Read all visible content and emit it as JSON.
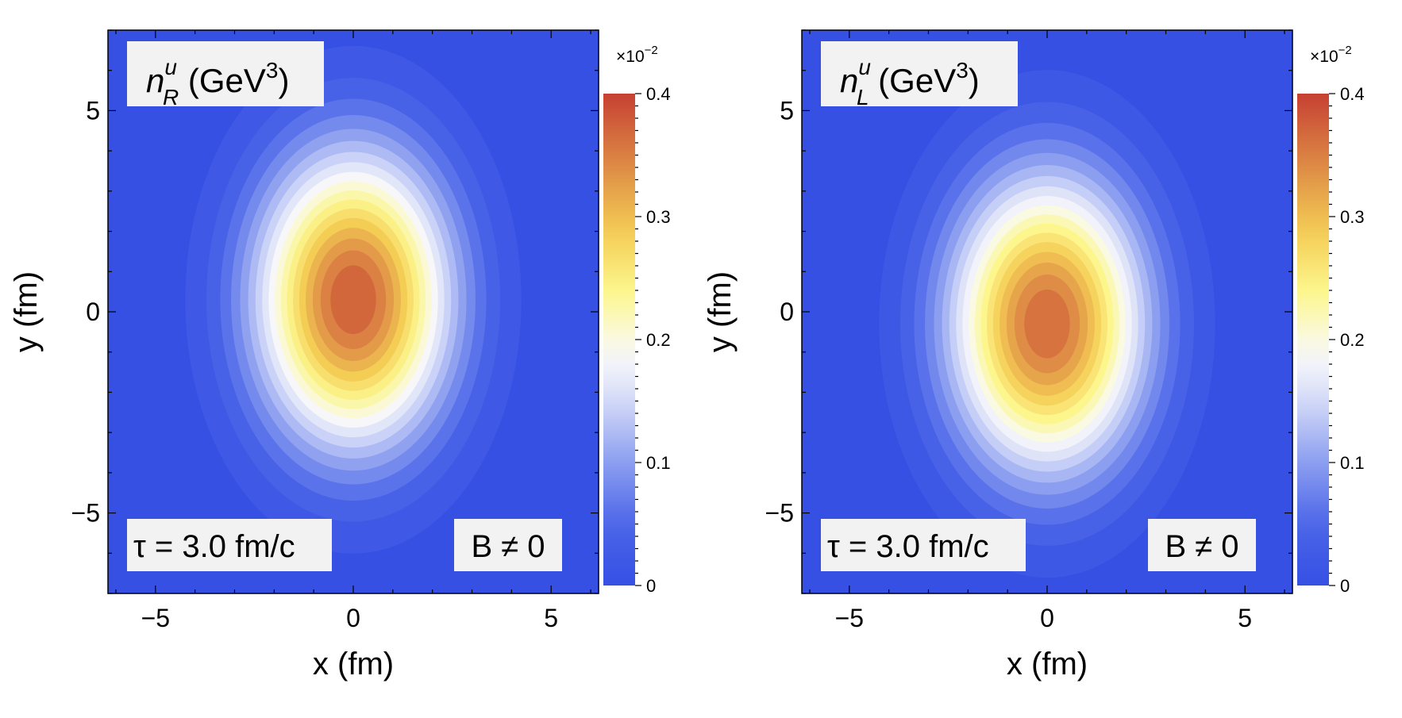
{
  "chart_data": [
    {
      "type": "heatmap",
      "title_base": "n",
      "title_sup": "u",
      "title_sub": "R",
      "title_unit_pre": " (GeV",
      "title_unit_exp": "3",
      "title_unit_post": ")",
      "xlabel": "x (fm)",
      "ylabel": "y (fm)",
      "xlim": [
        -6.2,
        6.2
      ],
      "ylim": [
        -7.0,
        7.0
      ],
      "x_ticks": [
        -5,
        0,
        5
      ],
      "x_tick_labels": [
        "−5",
        "0",
        "5"
      ],
      "y_ticks": [
        -5,
        0,
        5
      ],
      "y_tick_labels": [
        "−5",
        "0",
        "5"
      ],
      "annotation_time": "τ = 3.0 fm/c",
      "annotation_field": "B ≠ 0",
      "colorbar": {
        "scale": "×10",
        "scale_exp": "−2",
        "range": [
          0,
          0.4
        ],
        "ticks": [
          0,
          0.1,
          0.2,
          0.3,
          0.4
        ],
        "tick_labels": [
          "0",
          "0.1",
          "0.2",
          "0.3",
          "0.4"
        ]
      },
      "field": {
        "peak": 0.39,
        "center_x": 0.0,
        "center_y": 0.3,
        "sigma_x": 1.75,
        "sigma_y": 2.6,
        "contour_levels": 18
      }
    },
    {
      "type": "heatmap",
      "title_base": "n",
      "title_sup": "u",
      "title_sub": "L",
      "title_unit_pre": " (GeV",
      "title_unit_exp": "3",
      "title_unit_post": ")",
      "xlabel": "x (fm)",
      "ylabel": "y (fm)",
      "xlim": [
        -6.2,
        6.2
      ],
      "ylim": [
        -7.0,
        7.0
      ],
      "x_ticks": [
        -5,
        0,
        5
      ],
      "x_tick_labels": [
        "−5",
        "0",
        "5"
      ],
      "y_ticks": [
        -5,
        0,
        5
      ],
      "y_tick_labels": [
        "−5",
        "0",
        "5"
      ],
      "annotation_time": "τ = 3.0 fm/c",
      "annotation_field": "B ≠ 0",
      "colorbar": {
        "scale": "×10",
        "scale_exp": "−2",
        "range": [
          0,
          0.4
        ],
        "ticks": [
          0,
          0.1,
          0.2,
          0.3,
          0.4
        ],
        "tick_labels": [
          "0",
          "0.1",
          "0.2",
          "0.3",
          "0.4"
        ]
      },
      "field": {
        "peak": 0.38,
        "center_x": 0.0,
        "center_y": -0.3,
        "sigma_x": 1.75,
        "sigma_y": 2.6,
        "contour_levels": 18
      }
    }
  ]
}
